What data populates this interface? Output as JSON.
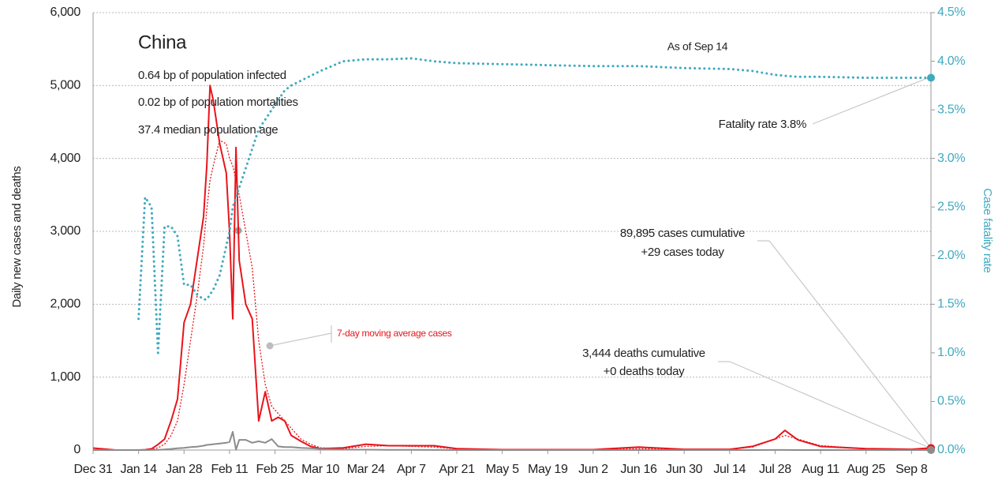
{
  "chart_data": {
    "type": "line",
    "title": "China",
    "subtitle_lines": [
      "0.64 bp of population infected",
      "0.02 bp of population mortalities",
      "37.4 median population age"
    ],
    "ylabel": "Daily new cases and deaths",
    "y2label": "Case fatality rate",
    "annotations": {
      "as_of": "As of Sep 14",
      "fatality": "Fatality rate 3.8%",
      "cases_cum": "89,895 cases cumulative",
      "cases_today": "+29 cases today",
      "deaths_cum": "3,444 deaths cumulative",
      "deaths_today": "+0 deaths today",
      "avg_label": "7-day moving average cases"
    },
    "x": [
      "Dec 31",
      "Jan 7",
      "Jan 14",
      "Jan 16",
      "Jan 18",
      "Jan 20",
      "Jan 22",
      "Jan 24",
      "Jan 26",
      "Jan 28",
      "Jan 30",
      "Feb 1",
      "Feb 3",
      "Feb 4",
      "Feb 5",
      "Feb 6",
      "Feb 8",
      "Feb 10",
      "Feb 11",
      "Feb 12",
      "Feb 13",
      "Feb 14",
      "Feb 16",
      "Feb 18",
      "Feb 20",
      "Feb 22",
      "Feb 24",
      "Feb 26",
      "Feb 28",
      "Mar 1",
      "Mar 4",
      "Mar 7",
      "Mar 10",
      "Mar 17",
      "Mar 24",
      "Mar 31",
      "Apr 7",
      "Apr 14",
      "Apr 21",
      "May 5",
      "May 19",
      "Jun 2",
      "Jun 16",
      "Jun 30",
      "Jul 14",
      "Jul 21",
      "Jul 28",
      "Jul 31",
      "Aug 4",
      "Aug 11",
      "Aug 25",
      "Sep 8",
      "Sep 14"
    ],
    "xticks": [
      "Dec 31",
      "Jan 14",
      "Jan 28",
      "Feb 11",
      "Feb 25",
      "Mar 10",
      "Mar 24",
      "Apr 7",
      "Apr 21",
      "May 5",
      "May 19",
      "Jun 2",
      "Jun 16",
      "Jun 30",
      "Jul 14",
      "Jul 28",
      "Aug 11",
      "Aug 25",
      "Sep 8"
    ],
    "series": [
      {
        "name": "Daily cases",
        "color": "#e8141b",
        "style": "solid",
        "width": 2,
        "values": [
          27,
          0,
          0,
          4,
          17,
          77,
          150,
          400,
          700,
          1750,
          2000,
          2600,
          3200,
          3900,
          5000,
          4800,
          4200,
          3800,
          3000,
          1800,
          4150,
          2600,
          2000,
          1800,
          400,
          800,
          400,
          450,
          400,
          200,
          120,
          50,
          20,
          30,
          80,
          60,
          60,
          60,
          20,
          5,
          5,
          5,
          40,
          10,
          10,
          50,
          150,
          270,
          140,
          50,
          20,
          10,
          29
        ]
      },
      {
        "name": "7-day moving average cases",
        "color": "#e8141b",
        "style": "dotted",
        "width": 1.3,
        "values": [
          0,
          0,
          0,
          2,
          8,
          30,
          80,
          200,
          400,
          900,
          1500,
          2100,
          2800,
          3300,
          3700,
          3900,
          4250,
          4200,
          4000,
          3900,
          3700,
          3500,
          3000,
          2500,
          1500,
          900,
          600,
          500,
          400,
          300,
          150,
          80,
          30,
          20,
          50,
          60,
          50,
          40,
          15,
          5,
          4,
          4,
          20,
          10,
          10,
          40,
          150,
          200,
          150,
          60,
          20,
          10,
          20
        ]
      },
      {
        "name": "Daily deaths",
        "color": "#8c8c8c",
        "style": "solid",
        "width": 2,
        "values": [
          0,
          0,
          0,
          0,
          1,
          3,
          8,
          15,
          24,
          30,
          40,
          45,
          60,
          70,
          75,
          80,
          90,
          100,
          110,
          250,
          5,
          140,
          140,
          100,
          120,
          100,
          150,
          50,
          40,
          40,
          30,
          25,
          15,
          5,
          5,
          3,
          2,
          1,
          0,
          0,
          0,
          0,
          0,
          0,
          0,
          0,
          1,
          1,
          0,
          0,
          0,
          0,
          0
        ]
      },
      {
        "name": "Case fatality rate",
        "color": "#3fa9bf",
        "style": "dotted",
        "width": 3,
        "axis": "y2",
        "values": [
          null,
          null,
          1.35,
          2.6,
          2.5,
          1.0,
          2.3,
          2.3,
          2.2,
          1.7,
          1.7,
          1.6,
          1.55,
          1.55,
          1.6,
          1.65,
          1.8,
          2.1,
          2.25,
          2.5,
          2.6,
          2.7,
          2.9,
          3.1,
          3.3,
          3.4,
          3.5,
          3.6,
          3.7,
          3.75,
          3.8,
          3.85,
          3.9,
          4.0,
          4.02,
          4.02,
          4.03,
          4.0,
          3.98,
          3.97,
          3.96,
          3.95,
          3.95,
          3.93,
          3.92,
          3.9,
          3.86,
          3.85,
          3.84,
          3.84,
          3.83,
          3.83,
          3.83
        ]
      }
    ],
    "ylim": [
      0,
      6000
    ],
    "yticks": [
      {
        "value": 0,
        "label": "0"
      },
      {
        "value": 1000,
        "label": "1,000"
      },
      {
        "value": 2000,
        "label": "2,000"
      },
      {
        "value": 3000,
        "label": "3,000"
      },
      {
        "value": 4000,
        "label": "4,000"
      },
      {
        "value": 5000,
        "label": "5,000"
      },
      {
        "value": 6000,
        "label": "6,000"
      }
    ],
    "y2lim": [
      0,
      4.5
    ],
    "y2ticks": [
      {
        "value": 0,
        "label": "0.0%"
      },
      {
        "value": 0.5,
        "label": "0.5%"
      },
      {
        "value": 1,
        "label": "1.0%"
      },
      {
        "value": 1.5,
        "label": "1.5%"
      },
      {
        "value": 2,
        "label": "2.0%"
      },
      {
        "value": 2.5,
        "label": "2.5%"
      },
      {
        "value": 3,
        "label": "3.0%"
      },
      {
        "value": 3.5,
        "label": "3.5%"
      },
      {
        "value": 4,
        "label": "4.0%"
      },
      {
        "value": 4.5,
        "label": "4.5%"
      }
    ],
    "grid": true
  }
}
